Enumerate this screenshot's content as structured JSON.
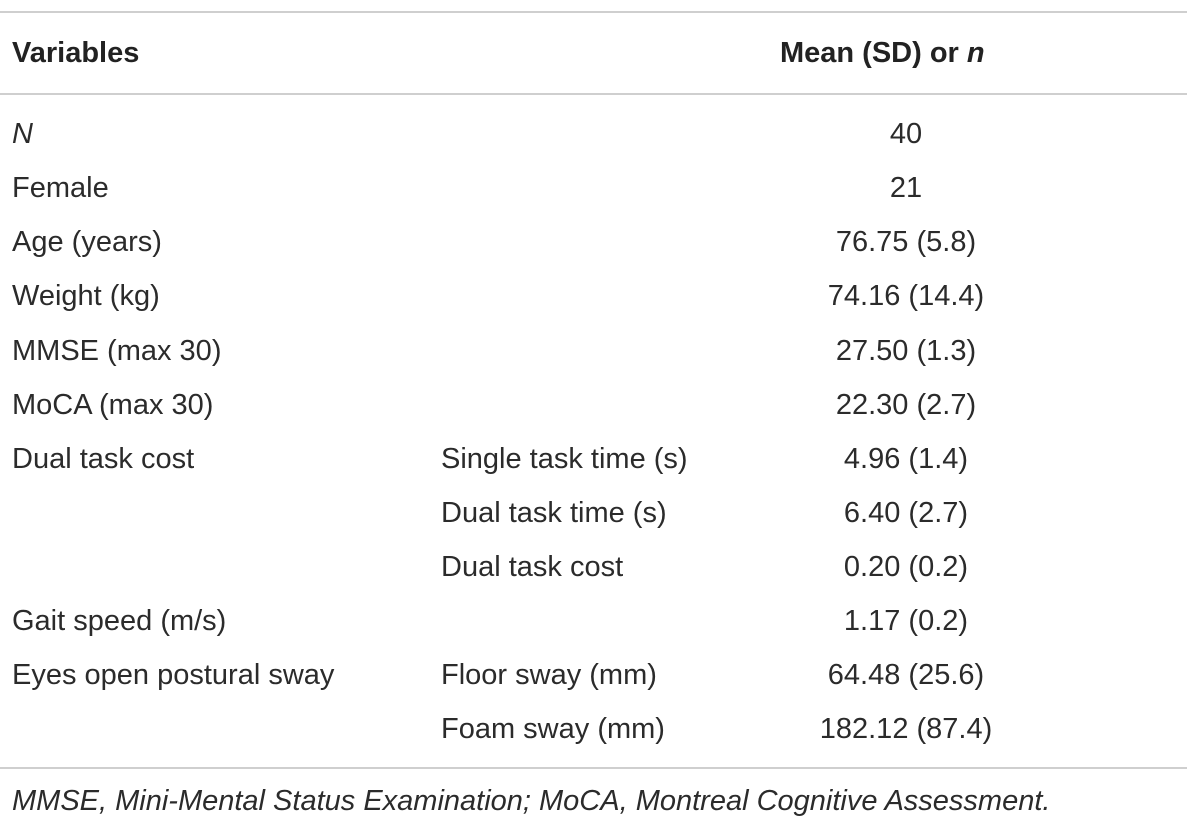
{
  "table": {
    "headers": {
      "variables": "Variables",
      "mean_prefix": "Mean (SD) or ",
      "mean_n": "n"
    },
    "rows": [
      {
        "variable": "N",
        "sub": "",
        "value": "40"
      },
      {
        "variable": "Female",
        "sub": "",
        "value": "21"
      },
      {
        "variable": "Age (years)",
        "sub": "",
        "value": "76.75 (5.8)"
      },
      {
        "variable": "Weight (kg)",
        "sub": "",
        "value": "74.16 (14.4)"
      },
      {
        "variable": "MMSE (max 30)",
        "sub": "",
        "value": "27.50 (1.3)"
      },
      {
        "variable": "MoCA (max 30)",
        "sub": "",
        "value": "22.30 (2.7)"
      },
      {
        "variable": "Dual task cost",
        "sub": "Single task time (s)",
        "value": "4.96 (1.4)"
      },
      {
        "variable": "",
        "sub": "Dual task time (s)",
        "value": "6.40 (2.7)"
      },
      {
        "variable": "",
        "sub": "Dual task cost",
        "value": "0.20 (0.2)"
      },
      {
        "variable": "Gait speed (m/s)",
        "sub": "",
        "value": "1.17 (0.2)"
      },
      {
        "variable": "Eyes open postural sway",
        "sub": "Floor sway (mm)",
        "value": "64.48 (25.6)"
      },
      {
        "variable": "",
        "sub": "Foam sway (mm)",
        "value": "182.12 (87.4)"
      }
    ]
  },
  "footnote": "MMSE, Mini-Mental Status Examination; MoCA, Montreal Cognitive Assessment."
}
